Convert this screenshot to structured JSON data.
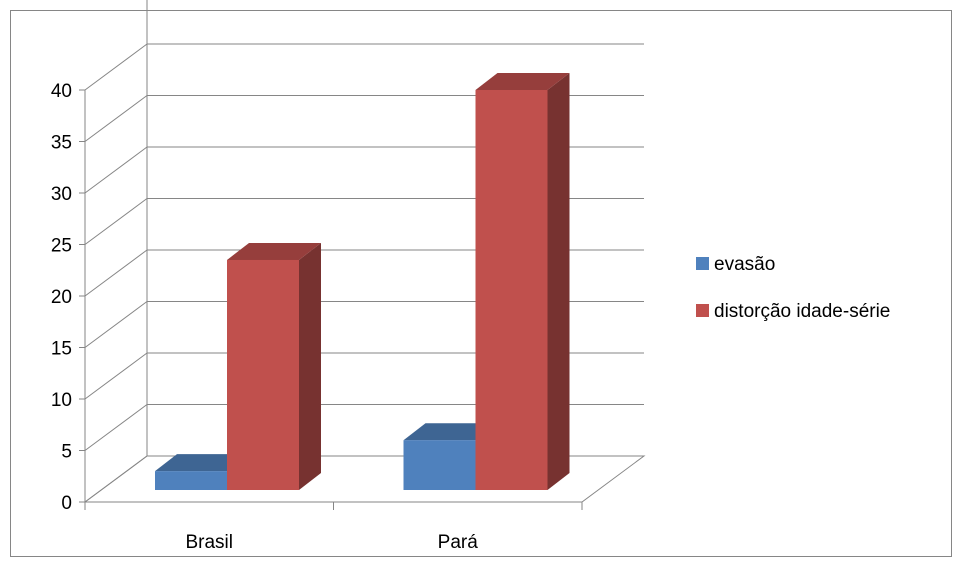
{
  "chart_data": {
    "type": "bar",
    "categories": [
      "Brasil",
      "Pará"
    ],
    "series": [
      {
        "name": "evasão",
        "values": [
          3,
          6
        ],
        "color": "#4f81bd"
      },
      {
        "name": "distorção idade-série",
        "values": [
          23.5,
          40
        ],
        "color": "#c0504d"
      }
    ],
    "yticks": [
      "0",
      "5",
      "10",
      "15",
      "20",
      "25",
      "30",
      "35",
      "40"
    ],
    "ylim": [
      0,
      45
    ],
    "grid": true,
    "legend": "right",
    "style": "3d-column"
  }
}
